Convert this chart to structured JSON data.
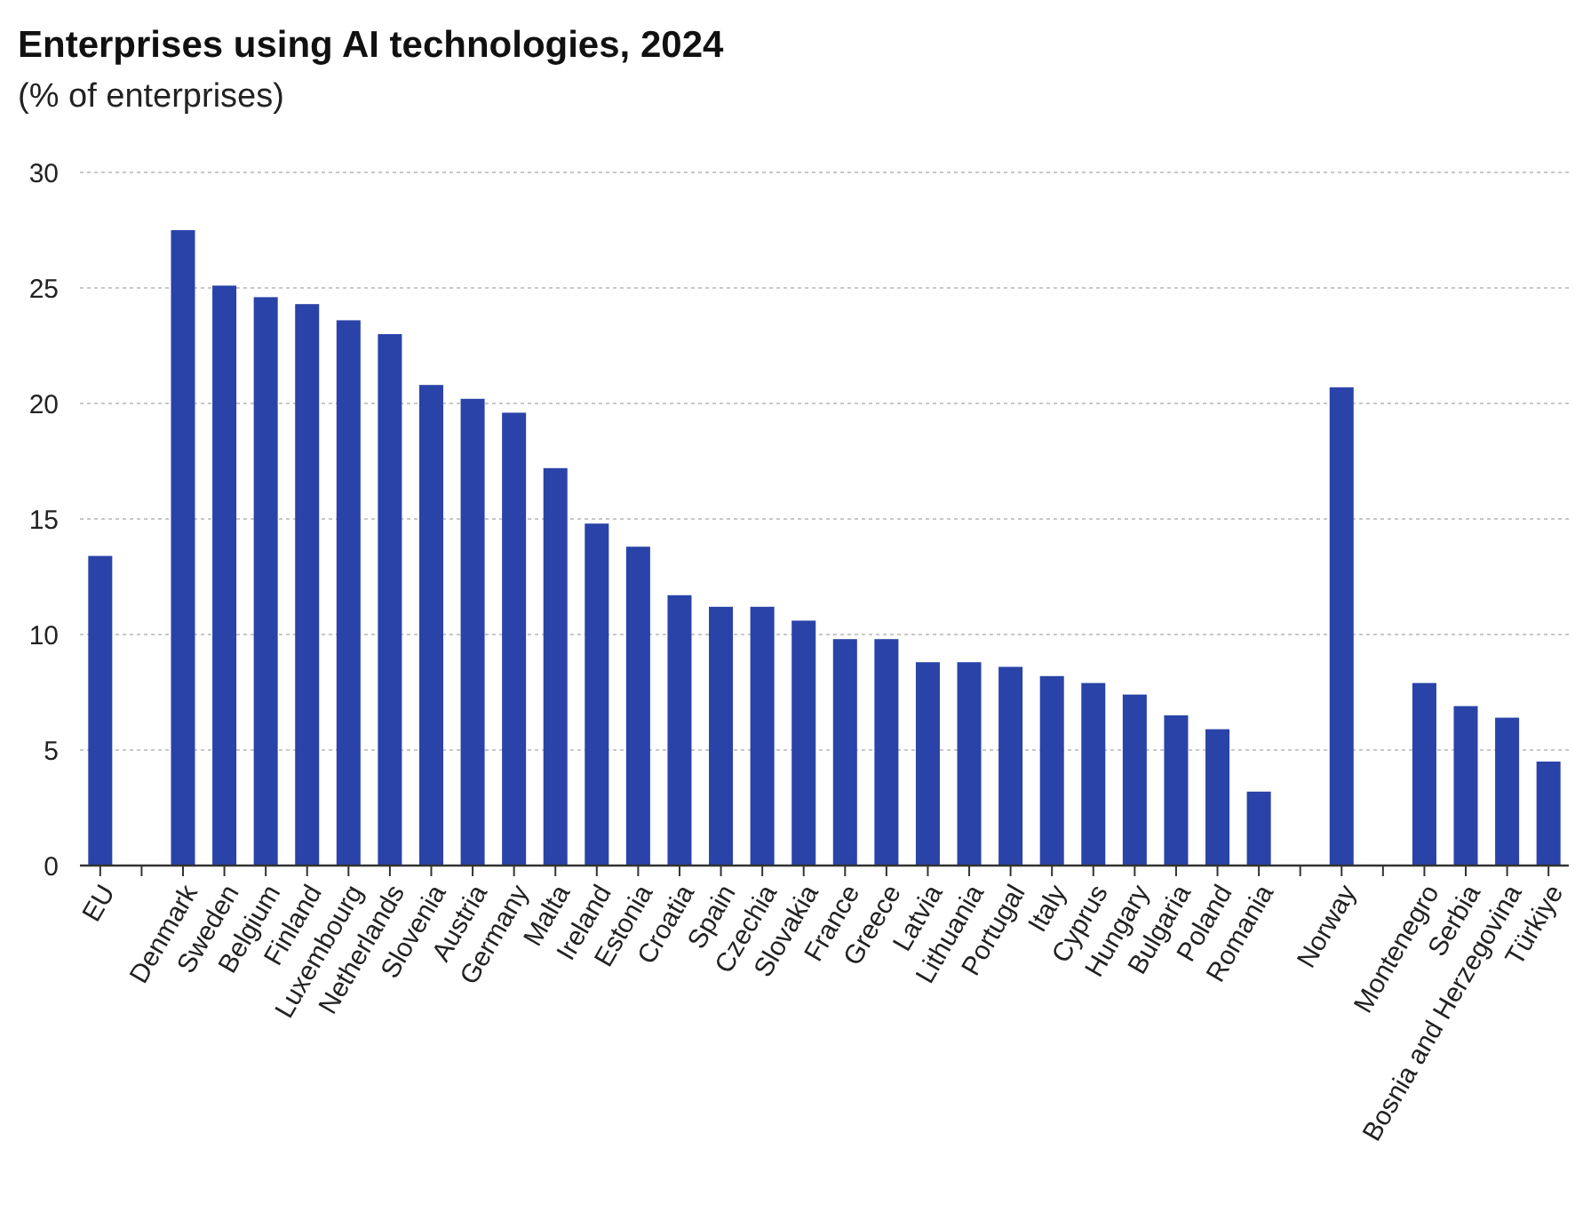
{
  "chart_data": {
    "type": "bar",
    "title": "Enterprises using AI technologies, 2024",
    "subtitle": "(% of enterprises)",
    "categories": [
      "EU",
      null,
      "Denmark",
      "Sweden",
      "Belgium",
      "Finland",
      "Luxembourg",
      "Netherlands",
      "Slovenia",
      "Austria",
      "Germany",
      "Malta",
      "Ireland",
      "Estonia",
      "Croatia",
      "Spain",
      "Czechia",
      "Slovakia",
      "France",
      "Greece",
      "Latvia",
      "Lithuania",
      "Portugal",
      "Italy",
      "Cyprus",
      "Hungary",
      "Bulgaria",
      "Poland",
      "Romania",
      null,
      "Norway",
      null,
      "Montenegro",
      "Serbia",
      "Bosnia and Herzegovina",
      "Türkiye"
    ],
    "values": [
      13.4,
      null,
      27.5,
      25.1,
      24.6,
      24.3,
      23.6,
      23.0,
      20.8,
      20.2,
      19.6,
      17.2,
      14.8,
      13.8,
      11.7,
      11.2,
      11.2,
      10.6,
      9.8,
      9.8,
      8.8,
      8.8,
      8.6,
      8.2,
      7.9,
      7.4,
      6.5,
      5.9,
      3.2,
      null,
      20.7,
      null,
      7.9,
      6.9,
      6.4,
      4.5
    ],
    "color": "#2a43a8",
    "ylim": [
      0,
      30
    ],
    "yticks": [
      0,
      5,
      10,
      15,
      20,
      25,
      30
    ],
    "grid": "y"
  }
}
